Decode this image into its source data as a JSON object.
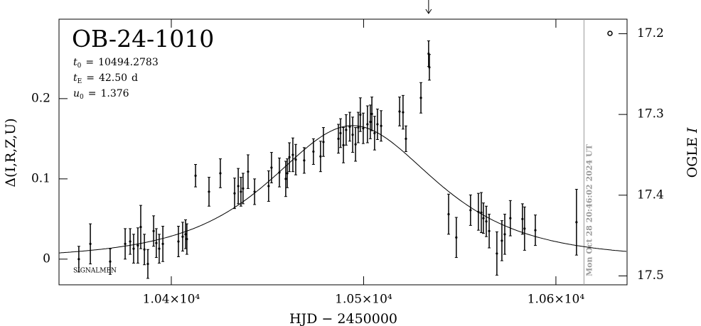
{
  "chart_data": {
    "type": "errorbar",
    "title": "OB-24-1010",
    "parameters": [
      {
        "symbol": "t",
        "subscript": "0",
        "equals": "=",
        "value": 10494.2783,
        "value_label": "10494.2783"
      },
      {
        "symbol": "t",
        "subscript": "E",
        "equals": "=",
        "value": 42.5,
        "value_label": "42.50",
        "unit": "d"
      },
      {
        "symbol": "u",
        "subscript": "0",
        "equals": "=",
        "value": 1.376,
        "value_label": "1.376"
      }
    ],
    "xlabel": "HJD − 2450000",
    "ylabel": "Δ(I,R,Z,U)",
    "y2label": [
      "OGLE",
      "I"
    ],
    "signature": "SIGNALMEN",
    "timestamp": "Mon Oct 28 20:46:02 2024 UT",
    "timestamp_x": 10614.6,
    "arrow_x": 10533.8,
    "xlim": [
      10341.6,
      10637.0
    ],
    "ylim": [
      -0.032,
      0.299
    ],
    "y2lim": [
      17.511,
      17.182
    ],
    "xticks": [
      {
        "value": 10400,
        "label": "1.04×10⁴"
      },
      {
        "value": 10500,
        "label": "1.05×10⁴"
      },
      {
        "value": 10600,
        "label": "1.06×10⁴"
      }
    ],
    "yticks": [
      0,
      0.1,
      0.2
    ],
    "y2ticks": [
      17.2,
      17.3,
      17.4,
      17.5
    ],
    "color": "#000000",
    "x": [
      10351.9,
      10357.9,
      10368.2,
      10376.0,
      10378.6,
      10380.4,
      10382.6,
      10384.1,
      10386.0,
      10387.8,
      10390.8,
      10392.2,
      10393.7,
      10395.6,
      10403.7,
      10405.9,
      10407.4,
      10408.1,
      10412.6,
      10419.6,
      10425.5,
      10432.9,
      10434.8,
      10436.2,
      10437.3,
      10439.9,
      10443.3,
      10450.6,
      10452.1,
      10456.2,
      10459.5,
      10460.3,
      10461.4,
      10463.2,
      10464.7,
      10469.1,
      10473.9,
      10477.6,
      10479.1,
      10486.9,
      10488.0,
      10489.5,
      10490.9,
      10492.8,
      10494.3,
      10495.8,
      10497.2,
      10498.3,
      10499.8,
      10502.0,
      10503.5,
      10504.3,
      10505.7,
      10507.2,
      10509.1,
      10518.7,
      10520.5,
      10522.0,
      10529.8,
      10533.8,
      10534.2,
      10544.2,
      10548.2,
      10555.6,
      10559.7,
      10561.2,
      10562.3,
      10563.8,
      10565.3,
      10569.3,
      10571.9,
      10573.4,
      10576.3,
      10582.6,
      10583.7,
      10589.3,
      10610.7
    ],
    "values": [
      0,
      0.019,
      -0.003,
      0.019,
      0.022,
      0.013,
      0.017,
      0.04,
      0.012,
      -0.006,
      0.035,
      0.02,
      0.013,
      0.019,
      0.022,
      0.028,
      0.031,
      0.025,
      0.104,
      0.084,
      0.107,
      0.082,
      0.091,
      0.084,
      0.088,
      0.109,
      0.084,
      0.091,
      0.114,
      0.108,
      0.1,
      0.107,
      0.127,
      0.13,
      0.124,
      0.123,
      0.134,
      0.128,
      0.146,
      0.15,
      0.157,
      0.142,
      0.161,
      0.165,
      0.155,
      0.143,
      0.164,
      0.18,
      0.163,
      0.168,
      0.171,
      0.181,
      0.157,
      0.168,
      0.166,
      0.184,
      0.183,
      0.15,
      0.201,
      0.256,
      0.239,
      0.056,
      0.027,
      0.061,
      0.059,
      0.058,
      0.051,
      0.047,
      0.035,
      0.007,
      0.023,
      0.031,
      0.051,
      0.05,
      0.038,
      0.036,
      0.046
    ],
    "errors": [
      0.016,
      0.025,
      0.016,
      0.019,
      0.016,
      0.018,
      0.022,
      0.027,
      0.019,
      0.018,
      0.019,
      0.018,
      0.018,
      0.022,
      0.019,
      0.018,
      0.018,
      0.019,
      0.014,
      0.018,
      0.018,
      0.019,
      0.022,
      0.018,
      0.019,
      0.021,
      0.016,
      0.019,
      0.019,
      0.018,
      0.022,
      0.018,
      0.018,
      0.021,
      0.019,
      0.016,
      0.016,
      0.019,
      0.018,
      0.018,
      0.018,
      0.022,
      0.019,
      0.018,
      0.022,
      0.021,
      0.019,
      0.021,
      0.019,
      0.023,
      0.021,
      0.021,
      0.021,
      0.019,
      0.019,
      0.018,
      0.021,
      0.016,
      0.019,
      0.016,
      0.016,
      0.025,
      0.025,
      0.019,
      0.023,
      0.025,
      0.019,
      0.019,
      0.021,
      0.027,
      0.025,
      0.025,
      0.022,
      0.019,
      0.027,
      0.019,
      0.041
    ]
  }
}
